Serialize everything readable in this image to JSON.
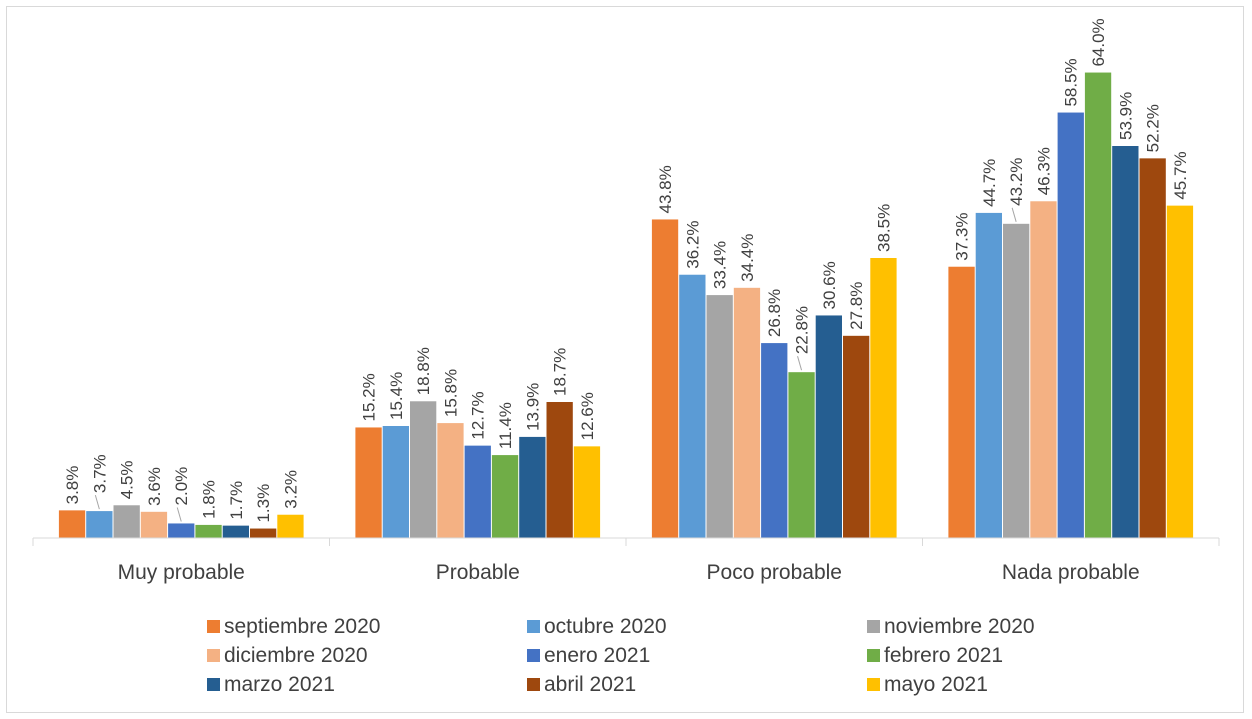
{
  "chart_data": {
    "type": "bar",
    "title": "",
    "xlabel": "",
    "ylabel": "",
    "ylim": [
      0,
      66
    ],
    "grid": false,
    "legend_position": "bottom",
    "categories": [
      "Muy probable",
      "Probable",
      "Poco probable",
      "Nada probable"
    ],
    "series": [
      {
        "name": "septiembre 2020",
        "color": "#ed7d31",
        "values": [
          3.8,
          15.2,
          43.8,
          37.3
        ],
        "labels": [
          "3.8%",
          "15.2%",
          "43.8%",
          "37.3%"
        ]
      },
      {
        "name": "octubre 2020",
        "color": "#5b9bd5",
        "values": [
          3.7,
          15.4,
          36.2,
          44.7
        ],
        "labels": [
          "3.7%",
          "15.4%",
          "36.2%",
          "44.7%"
        ]
      },
      {
        "name": "noviembre 2020",
        "color": "#a5a5a5",
        "values": [
          4.5,
          18.8,
          33.4,
          43.2
        ],
        "labels": [
          "4.5%",
          "18.8%",
          "33.4%",
          "43.2%"
        ]
      },
      {
        "name": "diciembre 2020",
        "color": "#f4b183",
        "values": [
          3.6,
          15.8,
          34.4,
          46.3
        ],
        "labels": [
          "3.6%",
          "15.8%",
          "34.4%",
          "46.3%"
        ]
      },
      {
        "name": "enero 2021",
        "color": "#4472c4",
        "values": [
          2.0,
          12.7,
          26.8,
          58.5
        ],
        "labels": [
          "2.0%",
          "12.7%",
          "26.8%",
          "58.5%"
        ]
      },
      {
        "name": "febrero 2021",
        "color": "#70ad47",
        "values": [
          1.8,
          11.4,
          22.8,
          64.0
        ],
        "labels": [
          "1.8%",
          "11.4%",
          "22.8%",
          "64.0%"
        ]
      },
      {
        "name": "marzo 2021",
        "color": "#255e91",
        "values": [
          1.7,
          13.9,
          30.6,
          53.9
        ],
        "labels": [
          "1.7%",
          "13.9%",
          "30.6%",
          "53.9%"
        ]
      },
      {
        "name": "abril 2021",
        "color": "#9e480e",
        "values": [
          1.3,
          18.7,
          27.8,
          52.2
        ],
        "labels": [
          "1.3%",
          "18.7%",
          "27.8%",
          "52.2%"
        ]
      },
      {
        "name": "mayo 2021",
        "color": "#ffc000",
        "values": [
          3.2,
          12.6,
          38.5,
          45.7
        ],
        "labels": [
          "3.2%",
          "12.6%",
          "38.5%",
          "45.7%"
        ]
      }
    ]
  }
}
